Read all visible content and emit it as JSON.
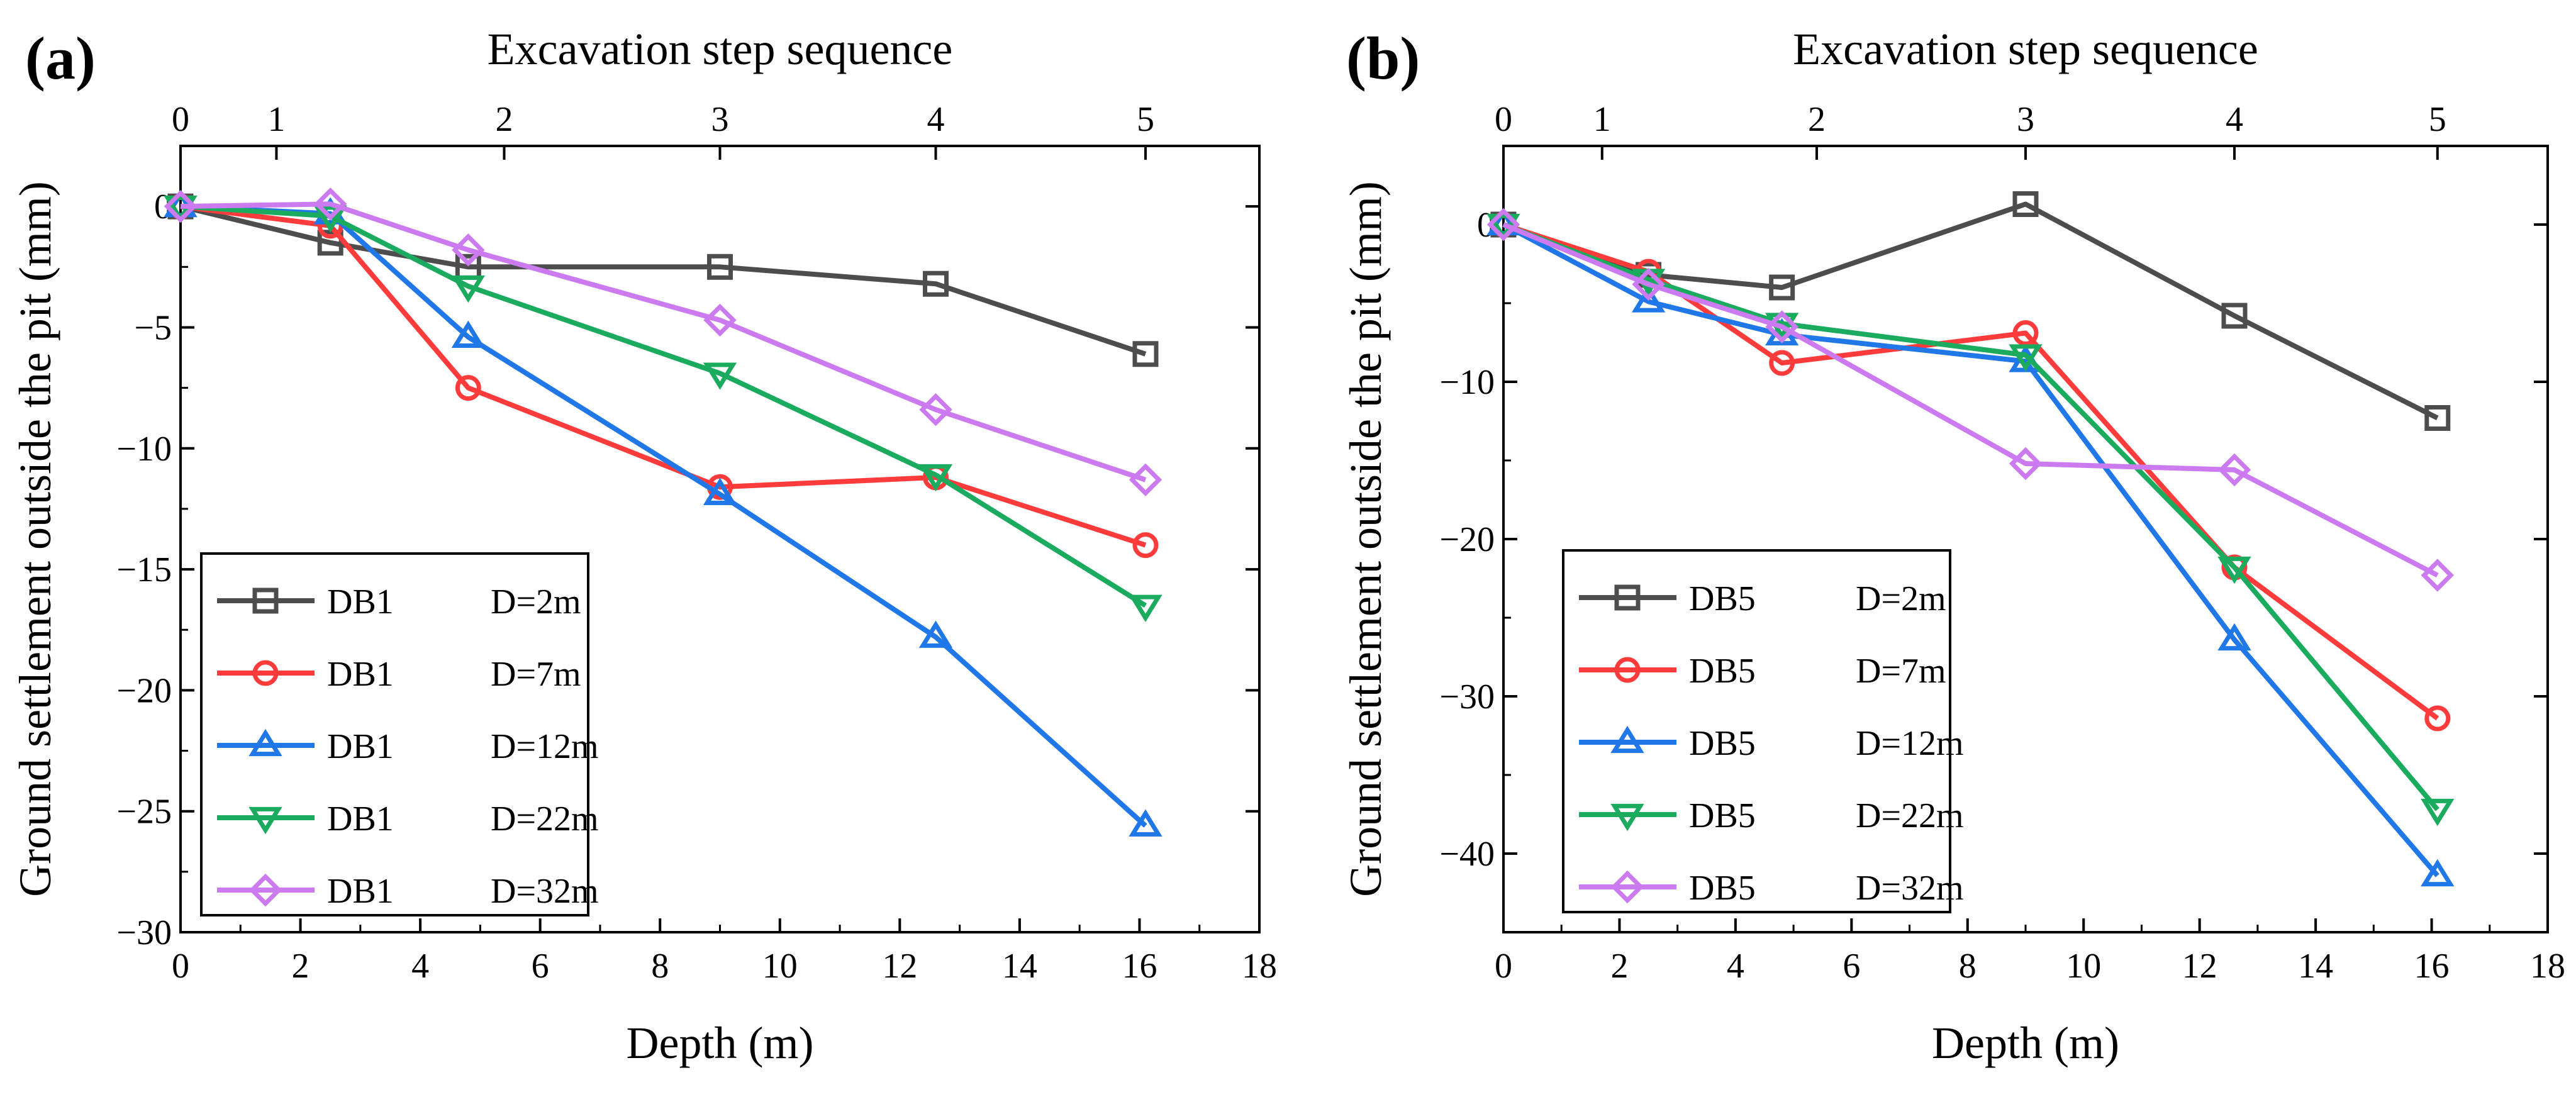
{
  "chart_data": [
    {
      "panel_label": "(a)",
      "type": "line",
      "title": "",
      "xlabel": "Depth (m)",
      "ylabel": "Ground settlement outside the pit (mm)",
      "top_axis_title": "Excavation  step sequence",
      "xlim": [
        0,
        18
      ],
      "ylim": [
        -30,
        2.5
      ],
      "x_ticks": [
        0,
        2,
        4,
        6,
        8,
        10,
        12,
        14,
        16,
        18
      ],
      "x_tick_labels": [
        "0",
        "2",
        "4",
        "6",
        "8",
        "10",
        "12",
        "14",
        "16",
        "18"
      ],
      "y_ticks": [
        0,
        -5,
        -10,
        -15,
        -20,
        -25,
        -30
      ],
      "y_tick_labels": [
        "0",
        "−5",
        "−10",
        "−15",
        "−20",
        "−25",
        "−30"
      ],
      "top_ticks": [
        {
          "label": "0",
          "depth": 0
        },
        {
          "label": "1",
          "depth": 1.6
        },
        {
          "label": "2",
          "depth": 5.4
        },
        {
          "label": "3",
          "depth": 9.0
        },
        {
          "label": "4",
          "depth": 12.6
        },
        {
          "label": "5",
          "depth": 16.1
        }
      ],
      "legend_position": "bottom-left",
      "x": [
        0,
        2.5,
        4.8,
        9.0,
        12.6,
        16.1
      ],
      "series": [
        {
          "name": "DB1",
          "label": "D=2m",
          "color": "#4d4d4d",
          "marker": "square",
          "values": [
            0,
            -1.5,
            -2.5,
            -2.5,
            -3.2,
            -6.1
          ]
        },
        {
          "name": "DB1",
          "label": "D=7m",
          "color": "#ff3b3b",
          "marker": "circle",
          "values": [
            0,
            -0.8,
            -7.5,
            -11.6,
            -11.2,
            -14.0
          ]
        },
        {
          "name": "DB1",
          "label": "D=12m",
          "color": "#1f77e8",
          "marker": "triangle-up",
          "values": [
            0,
            -0.3,
            -5.4,
            -11.9,
            -17.8,
            -25.6
          ]
        },
        {
          "name": "DB1",
          "label": "D=22m",
          "color": "#1aab5f",
          "marker": "triangle-down",
          "values": [
            0,
            -0.4,
            -3.3,
            -6.9,
            -11.1,
            -16.5
          ]
        },
        {
          "name": "DB1",
          "label": "D=32m",
          "color": "#cc7af0",
          "marker": "diamond",
          "values": [
            0,
            0.1,
            -1.8,
            -4.7,
            -8.4,
            -11.3
          ]
        }
      ]
    },
    {
      "panel_label": "(b)",
      "type": "line",
      "title": "",
      "xlabel": "Depth (m)",
      "ylabel": "Ground settlement outside the pit (mm)",
      "top_axis_title": "Excavation  step sequence",
      "xlim": [
        0,
        18
      ],
      "ylim": [
        -45,
        5
      ],
      "x_ticks": [
        0,
        2,
        4,
        6,
        8,
        10,
        12,
        14,
        16,
        18
      ],
      "x_tick_labels": [
        "0",
        "2",
        "4",
        "6",
        "8",
        "10",
        "12",
        "14",
        "16",
        "18"
      ],
      "y_ticks": [
        0,
        -10,
        -20,
        -30,
        -40
      ],
      "y_tick_labels": [
        "0",
        "−10",
        "−20",
        "−30",
        "−40"
      ],
      "top_ticks": [
        {
          "label": "0",
          "depth": 0
        },
        {
          "label": "1",
          "depth": 1.7
        },
        {
          "label": "2",
          "depth": 5.4
        },
        {
          "label": "3",
          "depth": 9.0
        },
        {
          "label": "4",
          "depth": 12.6
        },
        {
          "label": "5",
          "depth": 16.1
        }
      ],
      "legend_position": "bottom-left",
      "x": [
        0,
        2.5,
        4.8,
        9.0,
        12.6,
        16.1
      ],
      "series": [
        {
          "name": "DB5",
          "label": "D=2m",
          "color": "#4d4d4d",
          "marker": "square",
          "values": [
            0,
            -3.2,
            -4.0,
            1.3,
            -5.8,
            -12.3
          ]
        },
        {
          "name": "DB5",
          "label": "D=7m",
          "color": "#ff3b3b",
          "marker": "circle",
          "values": [
            0,
            -3.0,
            -8.8,
            -6.9,
            -21.8,
            -31.4
          ]
        },
        {
          "name": "DB5",
          "label": "D=12m",
          "color": "#1f77e8",
          "marker": "triangle-up",
          "values": [
            0,
            -4.9,
            -7.0,
            -8.7,
            -26.4,
            -41.4
          ]
        },
        {
          "name": "DB5",
          "label": "D=22m",
          "color": "#1aab5f",
          "marker": "triangle-down",
          "values": [
            0,
            -3.5,
            -6.3,
            -8.3,
            -21.8,
            -37.2
          ]
        },
        {
          "name": "DB5",
          "label": "D=32m",
          "color": "#cc7af0",
          "marker": "diamond",
          "values": [
            0,
            -3.8,
            -6.5,
            -15.2,
            -15.6,
            -22.3
          ]
        }
      ]
    }
  ]
}
